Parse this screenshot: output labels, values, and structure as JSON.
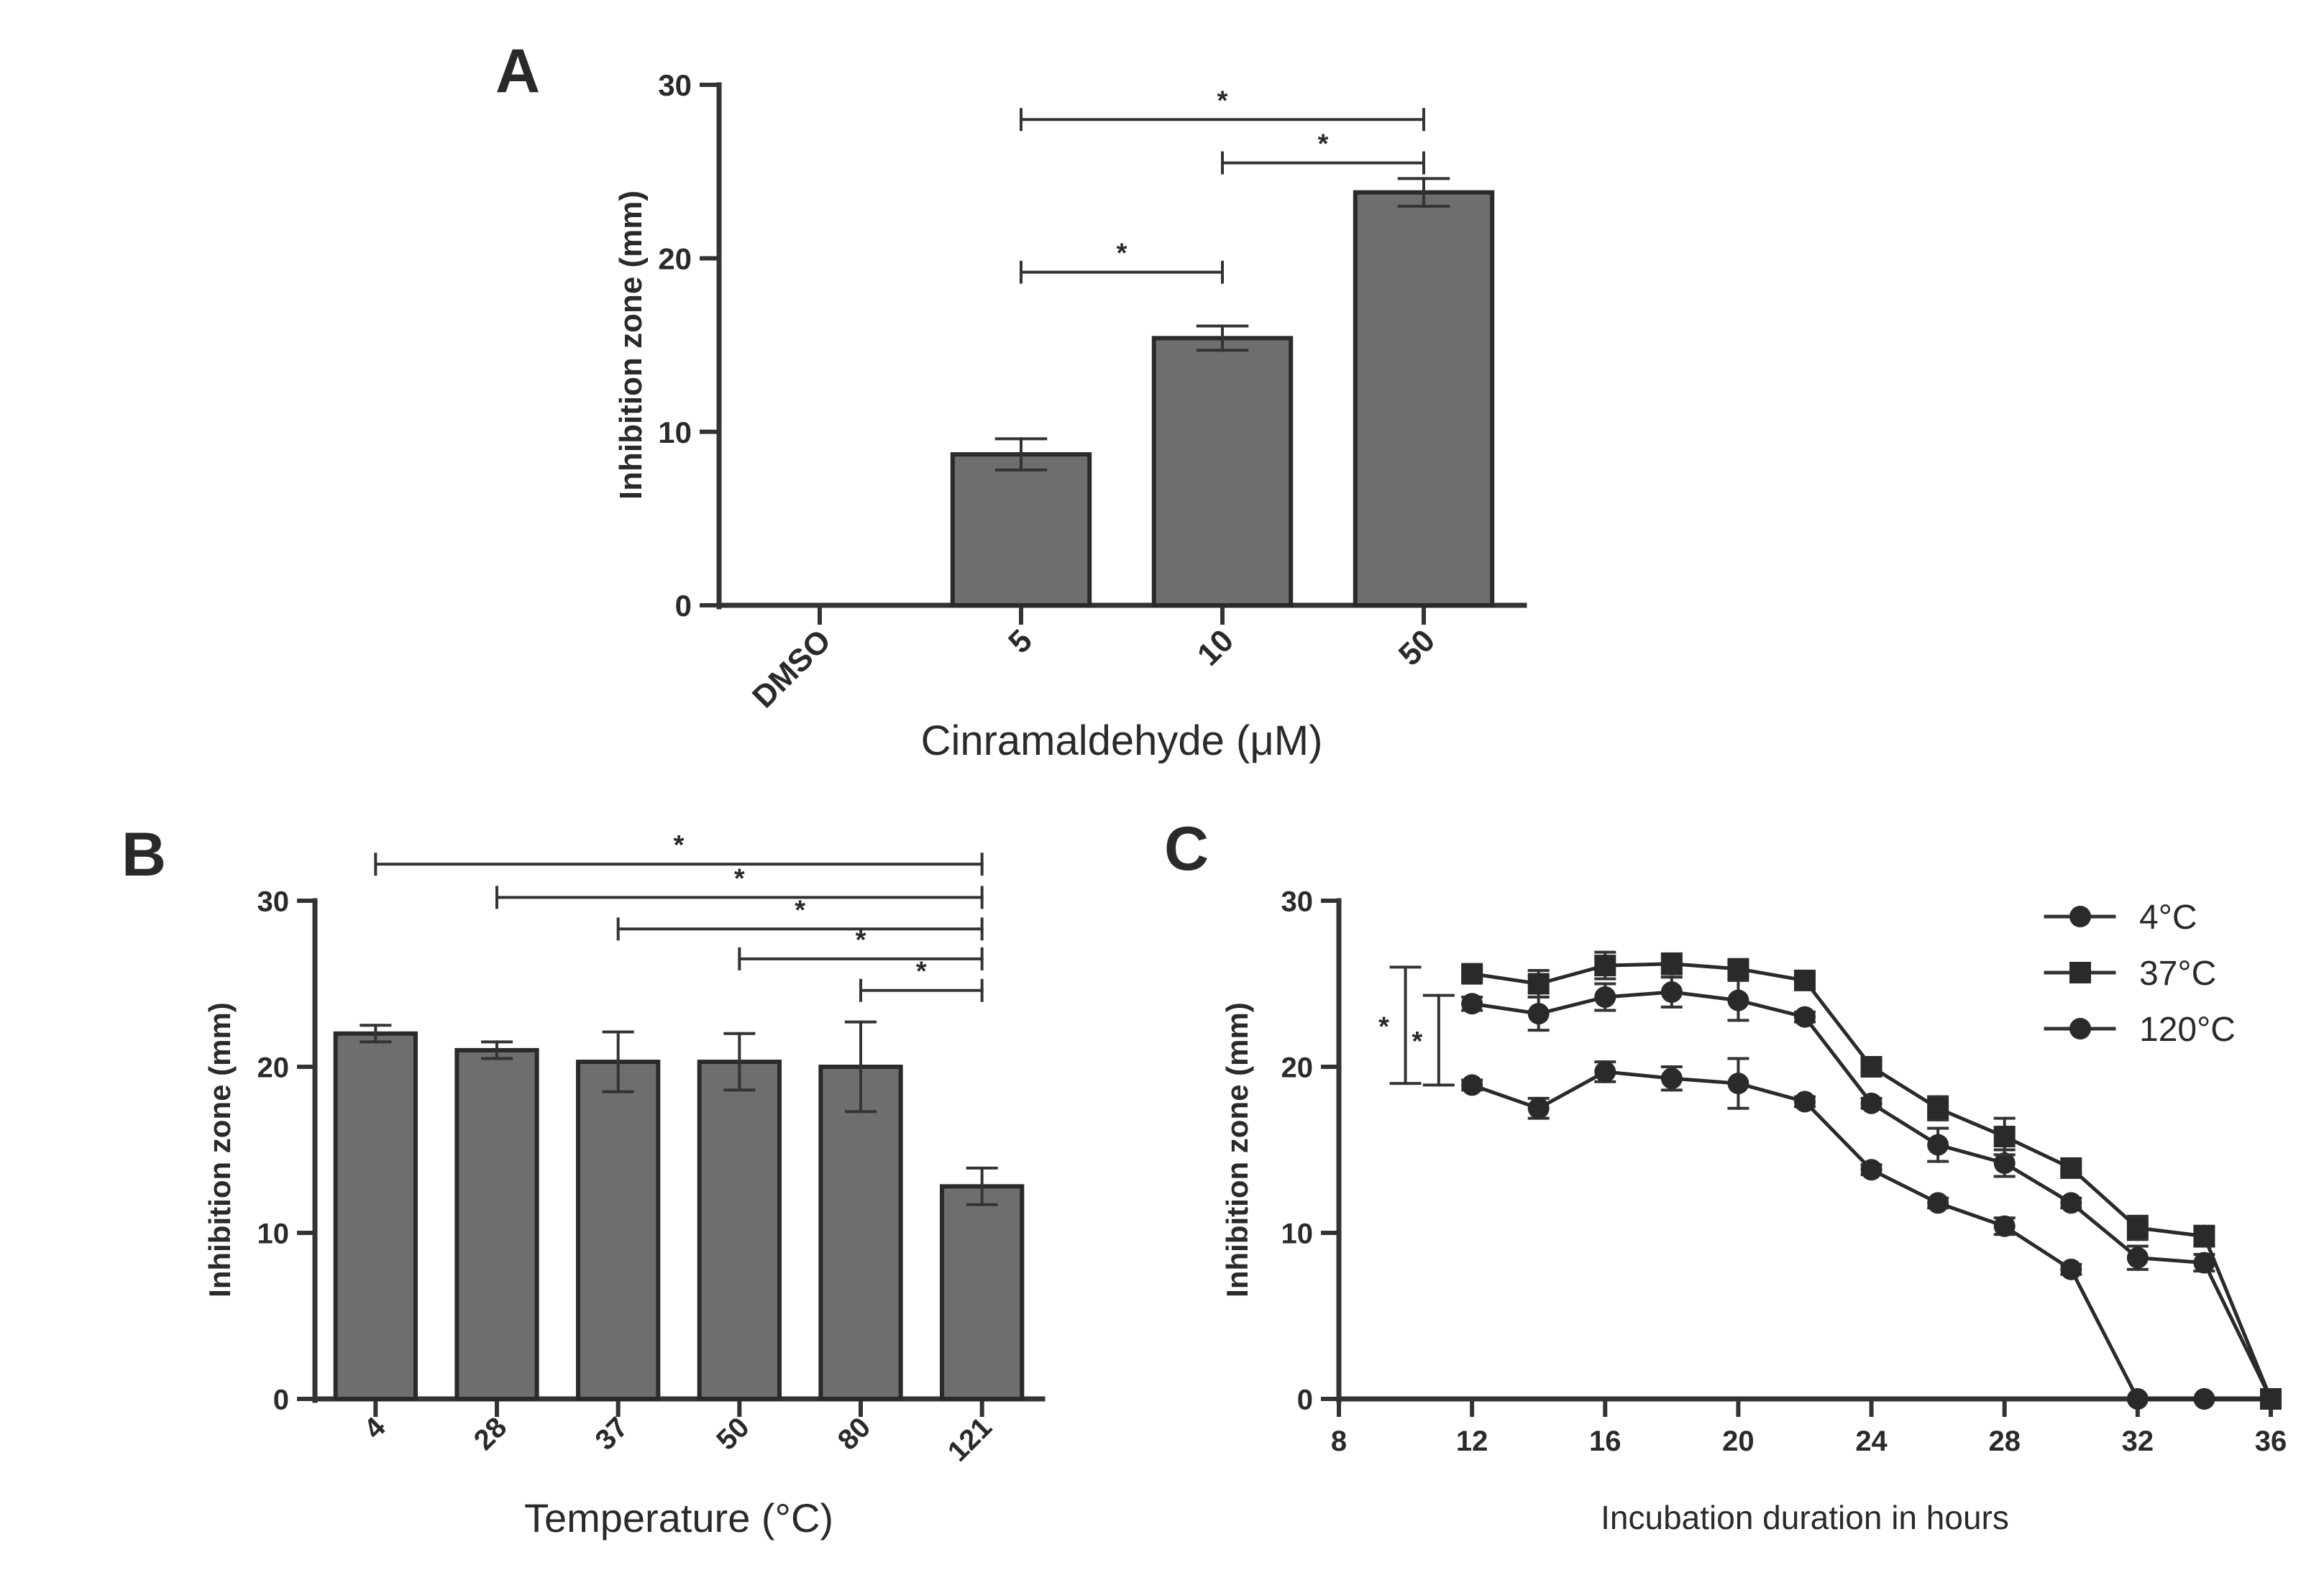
{
  "colors": {
    "bar_fill": "#6e6e6e",
    "ink": "#2a2a2a",
    "axis": "#333333",
    "background": "#ffffff"
  },
  "chart_data": [
    {
      "panel_label": "A",
      "type": "bar",
      "title": "",
      "xlabel": "Cinramaldehyde (μM)",
      "ylabel": "Inhibition zone (mm)",
      "categories": [
        "DMSO",
        "5",
        "10",
        "50"
      ],
      "values": [
        0,
        8.7,
        15.4,
        23.8
      ],
      "errors": [
        0,
        0.9,
        0.7,
        0.8
      ],
      "ylim": [
        0,
        30
      ],
      "yticks": [
        "0",
        "10",
        "20",
        "30"
      ],
      "significance": [
        {
          "from": 1,
          "to": 3,
          "label": "*",
          "y": 28
        },
        {
          "from": 2,
          "to": 3,
          "label": "*",
          "y": 25.5
        },
        {
          "from": 1,
          "to": 2,
          "label": "*",
          "y": 19.2
        }
      ]
    },
    {
      "panel_label": "B",
      "type": "bar",
      "title": "",
      "xlabel": "Temperature (°C)",
      "ylabel": "Inhibition zone (mm)",
      "categories": [
        "4",
        "28",
        "37",
        "50",
        "80",
        "121"
      ],
      "values": [
        22.0,
        21.0,
        20.3,
        20.3,
        20.0,
        12.8
      ],
      "errors": [
        0.5,
        0.5,
        1.8,
        1.7,
        2.7,
        1.1
      ],
      "ylim": [
        0,
        30
      ],
      "yticks": [
        "0",
        "10",
        "20",
        "30"
      ],
      "significance": [
        {
          "from": 0,
          "to": 5,
          "label": "*",
          "y": 32.2
        },
        {
          "from": 1,
          "to": 5,
          "label": "*",
          "y": 30.2
        },
        {
          "from": 2,
          "to": 5,
          "label": "*",
          "y": 28.3
        },
        {
          "from": 3,
          "to": 5,
          "label": "*",
          "y": 26.5
        },
        {
          "from": 4,
          "to": 5,
          "label": "*",
          "y": 24.6
        }
      ]
    },
    {
      "panel_label": "C",
      "type": "line",
      "title": "",
      "xlabel": "Incubation duration in hours",
      "ylabel": "Inhibition zone (mm)",
      "x": [
        12,
        14,
        16,
        18,
        20,
        22,
        24,
        26,
        28,
        30,
        32,
        34,
        36
      ],
      "xlim": [
        8,
        36
      ],
      "ylim": [
        0,
        30
      ],
      "xticks": [
        "8",
        "12",
        "16",
        "20",
        "24",
        "28",
        "32",
        "36"
      ],
      "yticks": [
        "0",
        "10",
        "20",
        "30"
      ],
      "legend_position": "top-right",
      "series": [
        {
          "name": "4°C",
          "marker": "circle",
          "values": [
            23.8,
            23.2,
            24.2,
            24.5,
            24.0,
            23.0,
            17.8,
            15.3,
            14.2,
            11.8,
            8.5,
            8.2,
            0
          ],
          "errors": [
            0.4,
            1.0,
            0.8,
            0.9,
            1.2,
            0.3,
            0.3,
            1.0,
            0.8,
            0.3,
            0.7,
            0.5,
            0
          ]
        },
        {
          "name": "37°C",
          "marker": "square",
          "values": [
            25.6,
            25.0,
            26.1,
            26.2,
            25.9,
            25.2,
            20.0,
            17.5,
            15.8,
            13.9,
            10.3,
            9.8,
            0
          ],
          "errors": [
            0.3,
            0.8,
            0.8,
            0.6,
            0.4,
            0.3,
            0.3,
            0.7,
            1.1,
            0.3,
            0.7,
            0.6,
            0
          ]
        },
        {
          "name": "120°C",
          "marker": "circle",
          "values": [
            18.9,
            17.5,
            19.7,
            19.3,
            19.0,
            17.9,
            13.8,
            11.8,
            10.4,
            7.8,
            0,
            0,
            0
          ],
          "errors": [
            0.3,
            0.6,
            0.6,
            0.7,
            1.5,
            0.3,
            0.3,
            0.3,
            0.5,
            0.3,
            0,
            0,
            0
          ]
        }
      ],
      "significance": [
        {
          "label": "*",
          "x": 10,
          "y_low": 19.0,
          "y_high": 26.0
        },
        {
          "label": "*",
          "x": 11,
          "y_low": 18.9,
          "y_high": 24.3
        }
      ]
    }
  ]
}
